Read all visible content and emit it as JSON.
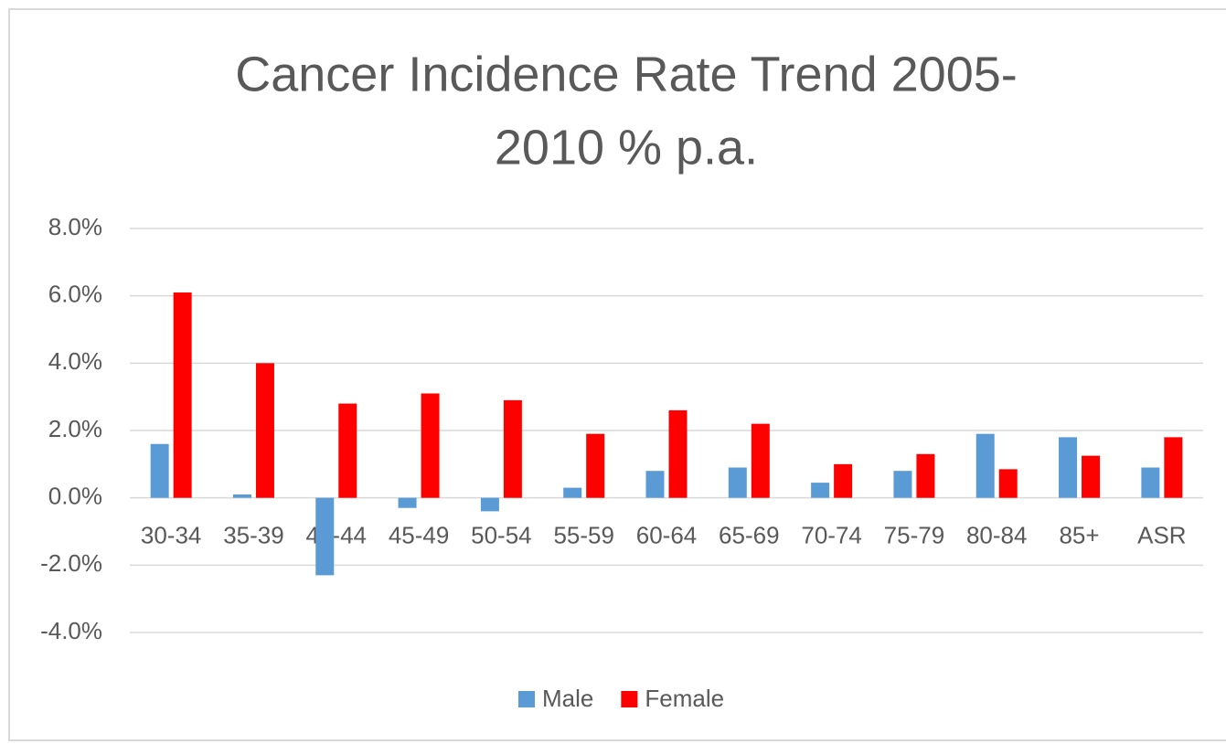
{
  "chart_data": {
    "type": "bar",
    "title": [
      "Cancer Incidence Rate Trend 2005-",
      "2010 % p.a."
    ],
    "categories": [
      "30-34",
      "35-39",
      "40-44",
      "45-49",
      "50-54",
      "55-59",
      "60-64",
      "65-69",
      "70-74",
      "75-79",
      "80-84",
      "85+",
      "ASR"
    ],
    "series": [
      {
        "name": "Male",
        "color": "#5b9bd5",
        "values": [
          1.6,
          0.1,
          -2.3,
          -0.3,
          -0.4,
          0.3,
          0.8,
          0.9,
          0.45,
          0.8,
          1.9,
          1.8,
          0.9
        ]
      },
      {
        "name": "Female",
        "color": "#ff0000",
        "values": [
          6.1,
          4.0,
          2.8,
          3.1,
          2.9,
          1.9,
          2.6,
          2.2,
          1.0,
          1.3,
          0.85,
          1.25,
          1.8
        ]
      }
    ],
    "ylim": [
      -4,
      8
    ],
    "yticks": [
      {
        "value": -4,
        "label": "-4.0%"
      },
      {
        "value": -2,
        "label": "-2.0%"
      },
      {
        "value": 0,
        "label": "0.0%"
      },
      {
        "value": 2,
        "label": "2.0%"
      },
      {
        "value": 4,
        "label": "4.0%"
      },
      {
        "value": 6,
        "label": "6.0%"
      },
      {
        "value": 8,
        "label": "8.0%"
      }
    ],
    "grid": true,
    "legend": "bottom"
  }
}
